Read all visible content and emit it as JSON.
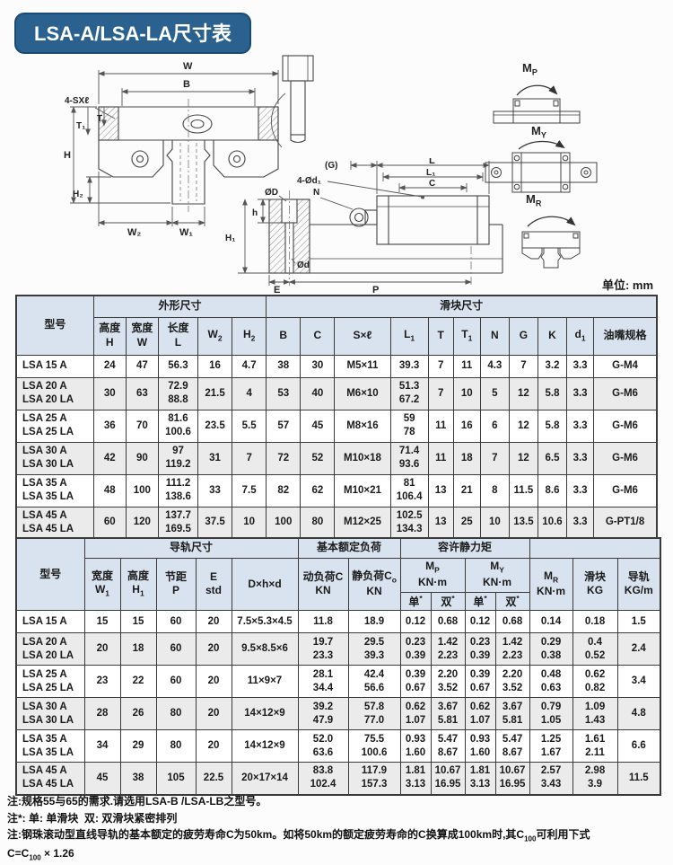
{
  "page": {
    "title": "LSA-A/LSA-LA尺寸表",
    "unit_label": "单位: mm"
  },
  "colors": {
    "banner": "#2b618e",
    "header_bg": "#d9e3ef",
    "row_alt": "#ebebeb",
    "border": "#3a3a3a"
  },
  "drawings": {
    "front_view": {
      "labels": {
        "w": "W",
        "b": "B",
        "screw_holes": "4-SXℓ",
        "h": "H",
        "t1": "T₁",
        "t": "T",
        "h2": "H₂",
        "w2": "W₂",
        "w1": "W₁"
      }
    },
    "side_view": {
      "labels": {
        "g": "(G)",
        "l": "L",
        "l1": "L₁",
        "c": "C",
        "d1_holes": "4-Ød₁",
        "dD": "ØD",
        "n": "N",
        "h_small": "h",
        "h1": "H₁",
        "dd": "Ød",
        "e": "E",
        "p": "P"
      }
    },
    "moment_labels": {
      "mp": "M<sub>P</sub>",
      "my": "M<sub>Y</sub>",
      "mr": "M<sub>R</sub>"
    }
  },
  "table1": {
    "header": {
      "model": "型号",
      "outer": "外形尺寸",
      "block": "滑块尺寸",
      "cols": [
        "高度<br>H",
        "宽度<br>W",
        "长度<br>L",
        "W<sub>2</sub>",
        "H<sub>2</sub>",
        "B",
        "C",
        "S×ℓ",
        "L<sub>1</sub>",
        "T",
        "T<sub>1</sub>",
        "N",
        "G",
        "K",
        "d<sub>1</sub>",
        "油嘴规格"
      ]
    },
    "rows": [
      [
        [
          "LSA 15 A"
        ],
        [
          "24"
        ],
        [
          "47"
        ],
        [
          "56.3"
        ],
        [
          "16"
        ],
        [
          "4.7"
        ],
        [
          "38"
        ],
        [
          "30"
        ],
        [
          "M5×11"
        ],
        [
          "39.3"
        ],
        [
          "7"
        ],
        [
          "11"
        ],
        [
          "4.3"
        ],
        [
          "7"
        ],
        [
          "3.2"
        ],
        [
          "3.3"
        ],
        [
          "G-M4"
        ]
      ],
      [
        [
          "LSA 20 A",
          "LSA 20 LA"
        ],
        [
          "30"
        ],
        [
          "63"
        ],
        [
          "72.9",
          "88.8"
        ],
        [
          "21.5"
        ],
        [
          "4"
        ],
        [
          "53"
        ],
        [
          "40"
        ],
        [
          "M6×10"
        ],
        [
          "51.3",
          "67.2"
        ],
        [
          "7"
        ],
        [
          "10"
        ],
        [
          "5"
        ],
        [
          "12"
        ],
        [
          "5.8"
        ],
        [
          "3.3"
        ],
        [
          "G-M6"
        ]
      ],
      [
        [
          "LSA 25 A",
          "LSA 25 LA"
        ],
        [
          "36"
        ],
        [
          "70"
        ],
        [
          "81.6",
          "100.6"
        ],
        [
          "23.5"
        ],
        [
          "5.5"
        ],
        [
          "57"
        ],
        [
          "45"
        ],
        [
          "M8×16"
        ],
        [
          "59",
          "78"
        ],
        [
          "11"
        ],
        [
          "16"
        ],
        [
          "6"
        ],
        [
          "12"
        ],
        [
          "5.8"
        ],
        [
          "3.3"
        ],
        [
          "G-M6"
        ]
      ],
      [
        [
          "LSA 30 A",
          "LSA 30 LA"
        ],
        [
          "42"
        ],
        [
          "90"
        ],
        [
          "97",
          "119.2"
        ],
        [
          "31"
        ],
        [
          "7"
        ],
        [
          "72"
        ],
        [
          "52"
        ],
        [
          "M10×18"
        ],
        [
          "71.4",
          "93.6"
        ],
        [
          "11"
        ],
        [
          "18"
        ],
        [
          "7"
        ],
        [
          "12"
        ],
        [
          "6.5"
        ],
        [
          "3.3"
        ],
        [
          "G-M6"
        ]
      ],
      [
        [
          "LSA 35 A",
          "LSA 35 LA"
        ],
        [
          "48"
        ],
        [
          "100"
        ],
        [
          "111.2",
          "138.6"
        ],
        [
          "33"
        ],
        [
          "7.5"
        ],
        [
          "82"
        ],
        [
          "62"
        ],
        [
          "M10×21"
        ],
        [
          "81",
          "106.4"
        ],
        [
          "13"
        ],
        [
          "21"
        ],
        [
          "8"
        ],
        [
          "11.5"
        ],
        [
          "8.6"
        ],
        [
          "3.3"
        ],
        [
          "G-M6"
        ]
      ],
      [
        [
          "LSA 45 A",
          "LSA 45 LA"
        ],
        [
          "60"
        ],
        [
          "120"
        ],
        [
          "137.7",
          "169.5"
        ],
        [
          "37.5"
        ],
        [
          "10"
        ],
        [
          "100"
        ],
        [
          "80"
        ],
        [
          "M12×25"
        ],
        [
          "102.5",
          "134.3"
        ],
        [
          "13"
        ],
        [
          "25"
        ],
        [
          "10"
        ],
        [
          "13.5"
        ],
        [
          "10.6"
        ],
        [
          "3.3"
        ],
        [
          "G-PT1/8"
        ]
      ]
    ]
  },
  "table2": {
    "header": {
      "model": "型号",
      "rail": "导轨尺寸",
      "load": "基本额定负荷",
      "moment": "容许静力矩",
      "cols": {
        "w1": "宽度<br>W<sub>1</sub>",
        "h1": "高度<br>H<sub>1</sub>",
        "p": "节距<br>P",
        "e": "E<br>std",
        "dhd": "D×h×d",
        "dyn": "动负荷C<br>KN",
        "stat": "静负荷C<sub>o</sub><br>KN",
        "mp": "M<sub>P</sub><br>KN·m",
        "my": "M<sub>Y</sub><br>KN·m",
        "mr": "M<sub>R</sub><br>KN·m",
        "slider": "滑块<br>KG",
        "rail_w": "导轨<br>KG/m",
        "single": "单<sup>*</sup>",
        "double": "双<sup>*</sup>"
      }
    },
    "rows": [
      [
        [
          "LSA 15 A"
        ],
        [
          "15"
        ],
        [
          "15"
        ],
        [
          "60"
        ],
        [
          "20"
        ],
        [
          "7.5×5.3×4.5"
        ],
        [
          "11.8"
        ],
        [
          "18.9"
        ],
        [
          "0.12"
        ],
        [
          "0.68"
        ],
        [
          "0.12"
        ],
        [
          "0.68"
        ],
        [
          "0.14"
        ],
        [
          "0.18"
        ],
        [
          "1.5"
        ]
      ],
      [
        [
          "LSA 20 A",
          "LSA 20 LA"
        ],
        [
          "20"
        ],
        [
          "18"
        ],
        [
          "60"
        ],
        [
          "20"
        ],
        [
          "9.5×8.5×6"
        ],
        [
          "19.7",
          "23.3"
        ],
        [
          "29.5",
          "39.3"
        ],
        [
          "0.23",
          "0.39"
        ],
        [
          "1.42",
          "2.23"
        ],
        [
          "0.23",
          "0.39"
        ],
        [
          "1.42",
          "2.23"
        ],
        [
          "0.29",
          "0.38"
        ],
        [
          "0.4",
          "0.52"
        ],
        [
          "2.4"
        ]
      ],
      [
        [
          "LSA 25 A",
          "LSA 25 LA"
        ],
        [
          "23"
        ],
        [
          "22"
        ],
        [
          "60"
        ],
        [
          "20"
        ],
        [
          "11×9×7"
        ],
        [
          "28.1",
          "34.4"
        ],
        [
          "42.4",
          "56.6"
        ],
        [
          "0.39",
          "0.67"
        ],
        [
          "2.20",
          "3.52"
        ],
        [
          "0.39",
          "0.67"
        ],
        [
          "2.20",
          "3.52"
        ],
        [
          "0.48",
          "0.63"
        ],
        [
          "0.62",
          "0.82"
        ],
        [
          "3.4"
        ]
      ],
      [
        [
          "LSA 30 A",
          "LSA 30 LA"
        ],
        [
          "28"
        ],
        [
          "26"
        ],
        [
          "80"
        ],
        [
          "20"
        ],
        [
          "14×12×9"
        ],
        [
          "39.2",
          "47.9"
        ],
        [
          "57.8",
          "77.0"
        ],
        [
          "0.62",
          "1.07"
        ],
        [
          "3.67",
          "5.81"
        ],
        [
          "0.62",
          "1.07"
        ],
        [
          "3.67",
          "5.81"
        ],
        [
          "0.79",
          "1.05"
        ],
        [
          "1.09",
          "1.43"
        ],
        [
          "4.8"
        ]
      ],
      [
        [
          "LSA 35 A",
          "LSA 35 LA"
        ],
        [
          "34"
        ],
        [
          "29"
        ],
        [
          "80"
        ],
        [
          "20"
        ],
        [
          "14×12×9"
        ],
        [
          "52.0",
          "63.6"
        ],
        [
          "75.5",
          "100.6"
        ],
        [
          "0.93",
          "1.60"
        ],
        [
          "5.47",
          "8.67"
        ],
        [
          "0.93",
          "1.60"
        ],
        [
          "5.47",
          "8.67"
        ],
        [
          "1.25",
          "1.67"
        ],
        [
          "1.61",
          "2.11"
        ],
        [
          "6.6"
        ]
      ],
      [
        [
          "LSA 45 A",
          "LSA 45 LA"
        ],
        [
          "45"
        ],
        [
          "38"
        ],
        [
          "105"
        ],
        [
          "22.5"
        ],
        [
          "20×17×14"
        ],
        [
          "83.8",
          "102.4"
        ],
        [
          "117.9",
          "157.3"
        ],
        [
          "1.81",
          "3.13"
        ],
        [
          "10.67",
          "16.95"
        ],
        [
          "1.81",
          "3.13"
        ],
        [
          "10.67",
          "16.95"
        ],
        [
          "2.57",
          "3.43"
        ],
        [
          "2.98",
          "3.9"
        ],
        [
          "11.5"
        ]
      ]
    ]
  },
  "notes": {
    "line1": "注:规格55与65的需求.请选用LSA-B /LSA-LB之型号。",
    "line2": "注*: 单: 单滑块  双: 双滑块紧密排列",
    "line3": "注:钢珠滚动型直线导轨的基本额定的疲劳寿命C为50km。如将50km的额定疲劳寿命的C换算成100km时,其C<sub>100</sub>可利用下式",
    "line4": "C=C<sub>100</sub> × 1.26"
  }
}
